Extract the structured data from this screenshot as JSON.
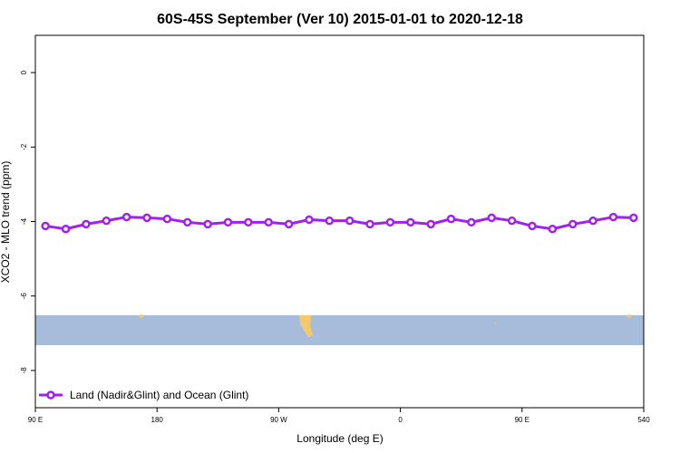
{
  "chart_data": {
    "type": "line",
    "title": "60S-45S September (Ver 10)   2015-01-01 to 2020-12-18",
    "x_label": "Longitude (deg E)",
    "y_label": "XCO2 - MLO trend (ppm)",
    "x": [
      97.5,
      112.5,
      127.5,
      142.5,
      157.5,
      172.5,
      187.5,
      202.5,
      217.5,
      232.5,
      247.5,
      262.5,
      277.5,
      292.5,
      307.5,
      322.5,
      337.5,
      352.5,
      367.5,
      382.5,
      397.5,
      412.5,
      427.5,
      442.5,
      457.5,
      472.5,
      487.5,
      502.5,
      517.5,
      532.5
    ],
    "series": [
      {
        "name": "Land (Nadir&Glint) and Ocean (Glint)",
        "color": "#a020f0",
        "values": [
          -4.12,
          -4.2,
          -4.07,
          -3.98,
          -3.88,
          -3.9,
          -3.93,
          -4.02,
          -4.07,
          -4.02,
          -4.02,
          -4.02,
          -4.07,
          -3.95,
          -3.98,
          -3.98,
          -4.07,
          -4.02,
          -4.02,
          -4.07,
          -3.93,
          -4.02,
          -3.9,
          -3.98,
          -4.12,
          -4.2,
          -4.07,
          -3.98,
          -3.88,
          -3.9
        ]
      }
    ],
    "xlim": [
      90,
      540
    ],
    "xticks": [
      {
        "value": 90,
        "label": "90 E"
      },
      180,
      {
        "value": 270,
        "label": "90 W"
      },
      {
        "value": 360,
        "label": "0"
      },
      {
        "value": 450,
        "label": "90 E"
      },
      540
    ],
    "ylim": [
      -9,
      1
    ],
    "yticks": [
      0,
      -2,
      -4,
      -6,
      -8
    ],
    "legend": "bottom-left"
  }
}
